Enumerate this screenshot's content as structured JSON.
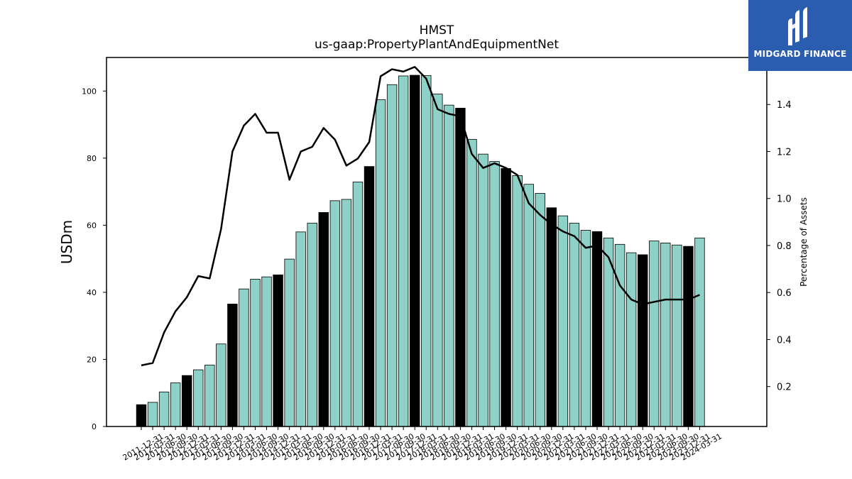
{
  "chart_data": {
    "type": "bar",
    "title": "HMST",
    "subtitle": "us-gaap:PropertyPlantAndEquipmentNet",
    "ylabel": "USDm",
    "ylabel_right": "Percentage of Assets",
    "ylim": [
      0,
      110
    ],
    "ylim_right": [
      0.03,
      1.6
    ],
    "yticks": [
      0,
      20,
      40,
      60,
      80,
      100
    ],
    "yticks_right": [
      0.2,
      0.4,
      0.6,
      0.8,
      1.0,
      1.2,
      1.4
    ],
    "grid": false,
    "colors": {
      "bar": "#8ed1c6",
      "bar_q4": "#000000",
      "line": "#000000"
    },
    "categories": [
      "2011-12-31",
      "2012-03-31",
      "2012-06-30",
      "2012-09-30",
      "2012-12-31",
      "2013-03-31",
      "2013-06-30",
      "2013-09-30",
      "2013-12-31",
      "2014-03-31",
      "2014-06-30",
      "2014-09-30",
      "2014-12-31",
      "2015-03-31",
      "2015-06-30",
      "2015-09-30",
      "2015-12-31",
      "2016-03-31",
      "2016-06-30",
      "2016-09-30",
      "2016-12-31",
      "2017-03-31",
      "2017-06-30",
      "2017-09-30",
      "2017-12-31",
      "2018-03-31",
      "2018-06-30",
      "2018-09-30",
      "2018-12-31",
      "2019-03-31",
      "2019-06-30",
      "2019-09-30",
      "2019-12-31",
      "2020-03-31",
      "2020-06-30",
      "2020-09-30",
      "2020-12-31",
      "2021-03-31",
      "2021-06-30",
      "2021-09-30",
      "2021-12-31",
      "2022-03-31",
      "2022-06-30",
      "2022-09-30",
      "2022-12-31",
      "2023-03-31",
      "2023-06-30",
      "2023-09-30",
      "2023-12-31",
      "2024-03-31"
    ],
    "series": [
      {
        "kind": "bar",
        "values": [
          6.5,
          7.2,
          10.3,
          13.0,
          15.2,
          16.9,
          18.3,
          24.6,
          36.5,
          41.0,
          43.9,
          44.6,
          45.2,
          49.9,
          58.0,
          60.6,
          63.8,
          67.3,
          67.7,
          72.9,
          77.5,
          97.4,
          101.9,
          104.5,
          104.7,
          104.6,
          99.1,
          95.8,
          94.9,
          85.6,
          81.2,
          79.0,
          76.9,
          74.8,
          72.2,
          69.5,
          65.2,
          62.8,
          60.6,
          58.5,
          58.1,
          56.2,
          54.3,
          51.8,
          51.2,
          55.3,
          54.7,
          54.1,
          53.7,
          56.2
        ],
        "q4_index_flags": [
          1,
          0,
          0,
          0,
          1,
          0,
          0,
          0,
          1,
          0,
          0,
          0,
          1,
          0,
          0,
          0,
          1,
          0,
          0,
          0,
          1,
          0,
          0,
          0,
          1,
          0,
          0,
          0,
          1,
          0,
          0,
          0,
          1,
          0,
          0,
          0,
          1,
          0,
          0,
          0,
          1,
          0,
          0,
          0,
          1,
          0,
          0,
          0,
          1,
          0
        ]
      },
      {
        "kind": "line",
        "axis": "right",
        "values": [
          0.29,
          0.3,
          0.43,
          0.52,
          0.58,
          0.67,
          0.66,
          0.87,
          1.2,
          1.31,
          1.36,
          1.28,
          1.28,
          1.08,
          1.2,
          1.22,
          1.3,
          1.25,
          1.14,
          1.17,
          1.24,
          1.52,
          1.55,
          1.54,
          1.56,
          1.51,
          1.38,
          1.36,
          1.35,
          1.19,
          1.13,
          1.15,
          1.13,
          1.1,
          0.98,
          0.93,
          0.89,
          0.86,
          0.84,
          0.79,
          0.8,
          0.75,
          0.63,
          0.57,
          0.55,
          0.56,
          0.57,
          0.57,
          0.57,
          0.59
        ]
      }
    ]
  },
  "logo": {
    "text": "MIDGARD FINANCE",
    "icon": "midgard-logo-icon"
  }
}
